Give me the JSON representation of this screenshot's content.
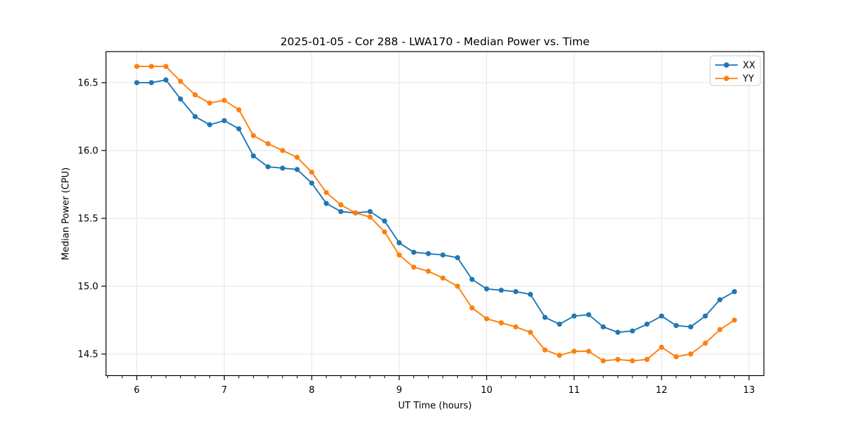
{
  "figure": {
    "background_color": "#ffffff",
    "spine_color": "#000000",
    "grid_color": "#e5e5e5"
  },
  "chart_data": {
    "type": "line",
    "title": "2025-01-05 - Cor 288 - LWA170 - Median Power vs. Time",
    "xlabel": "UT Time (hours)",
    "ylabel": "Median Power (CPU)",
    "xlim": [
      5.648,
      13.17
    ],
    "ylim": [
      14.341,
      16.729
    ],
    "xticks": [
      6,
      7,
      8,
      9,
      10,
      11,
      12,
      13
    ],
    "xticklabels": [
      "6",
      "7",
      "8",
      "9",
      "10",
      "11",
      "12",
      "13"
    ],
    "yticks": [
      14.5,
      15.0,
      15.5,
      16.0,
      16.5
    ],
    "yticklabels": [
      "14.5",
      "15.0",
      "15.5",
      "16.0",
      "16.5"
    ],
    "x_minor_tick_step": 0.16667,
    "grid": true,
    "legend_position": "upper right",
    "x": [
      6.0,
      6.167,
      6.333,
      6.5,
      6.667,
      6.833,
      7.0,
      7.167,
      7.333,
      7.5,
      7.667,
      7.833,
      8.0,
      8.167,
      8.333,
      8.5,
      8.667,
      8.833,
      9.0,
      9.167,
      9.333,
      9.5,
      9.667,
      9.833,
      10.0,
      10.167,
      10.333,
      10.5,
      10.667,
      10.833,
      11.0,
      11.167,
      11.333,
      11.5,
      11.667,
      11.833,
      12.0,
      12.167,
      12.333,
      12.5,
      12.667,
      12.833
    ],
    "series": [
      {
        "name": "XX",
        "color": "#1f77b4",
        "values": [
          16.5,
          16.5,
          16.52,
          16.38,
          16.25,
          16.19,
          16.22,
          16.16,
          15.96,
          15.88,
          15.87,
          15.86,
          15.76,
          15.61,
          15.55,
          15.54,
          15.55,
          15.48,
          15.32,
          15.25,
          15.24,
          15.23,
          15.21,
          15.05,
          14.98,
          14.97,
          14.96,
          14.94,
          14.77,
          14.72,
          14.78,
          14.79,
          14.7,
          14.66,
          14.67,
          14.72,
          14.78,
          14.71,
          14.7,
          14.78,
          14.9,
          14.96
        ]
      },
      {
        "name": "YY",
        "color": "#ff7f0e",
        "values": [
          16.62,
          16.62,
          16.62,
          16.51,
          16.41,
          16.35,
          16.37,
          16.3,
          16.11,
          16.05,
          16.0,
          15.95,
          15.84,
          15.69,
          15.6,
          15.54,
          15.51,
          15.4,
          15.23,
          15.14,
          15.11,
          15.06,
          15.0,
          14.84,
          14.76,
          14.73,
          14.7,
          14.66,
          14.53,
          14.49,
          14.52,
          14.52,
          14.45,
          14.46,
          14.45,
          14.46,
          14.55,
          14.48,
          14.5,
          14.58,
          14.68,
          14.75
        ]
      }
    ]
  }
}
